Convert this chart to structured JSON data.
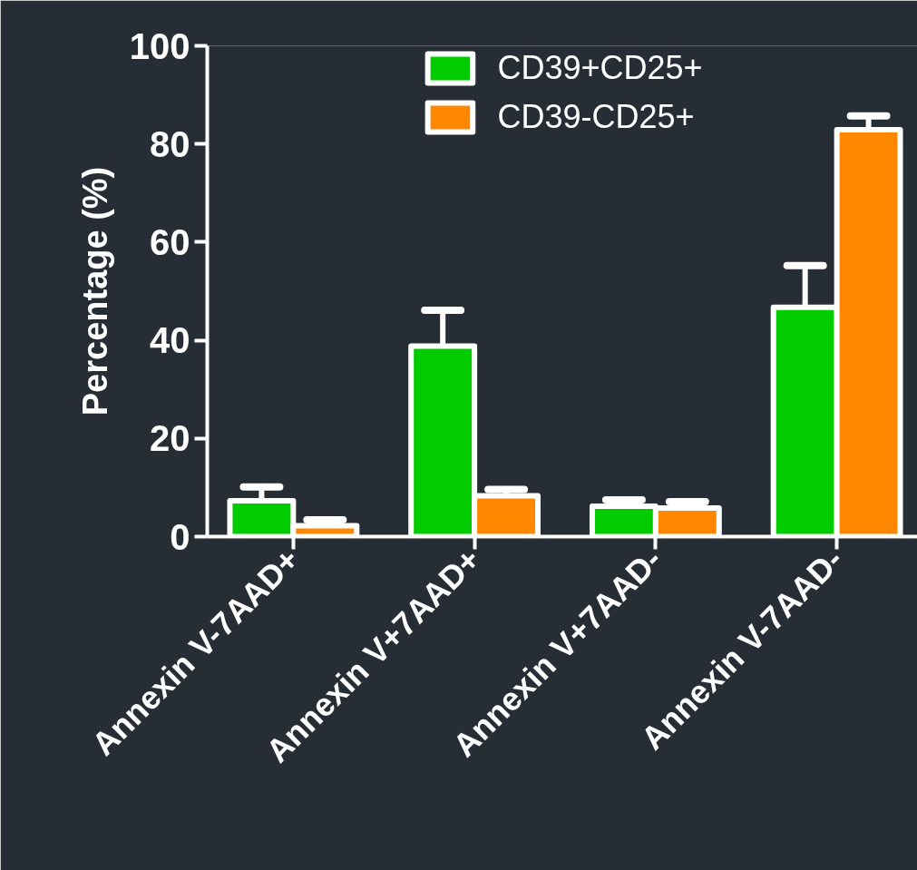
{
  "chart_data": {
    "type": "bar",
    "ylabel": "Percentage (%)",
    "categories": [
      "Annexin V-7AAD+",
      "Annexin V+7AAD+",
      "Annexin V+7AAD-",
      "Annexin V-7AAD-"
    ],
    "series": [
      {
        "name": "CD39+CD25+",
        "color": "#00cc00",
        "values": [
          7.3,
          38.8,
          6.2,
          46.7
        ],
        "errors": [
          2.8,
          7.3,
          1.3,
          8.5
        ]
      },
      {
        "name": "CD39-CD25+",
        "color": "#ff8800",
        "values": [
          2.2,
          8.3,
          5.8,
          82.9
        ],
        "errors": [
          1.2,
          1.3,
          1.3,
          2.8
        ]
      }
    ],
    "ylim": [
      0,
      100
    ],
    "yticks": [
      0,
      20,
      40,
      60,
      80,
      100
    ],
    "grid": false,
    "legend": "top"
  }
}
